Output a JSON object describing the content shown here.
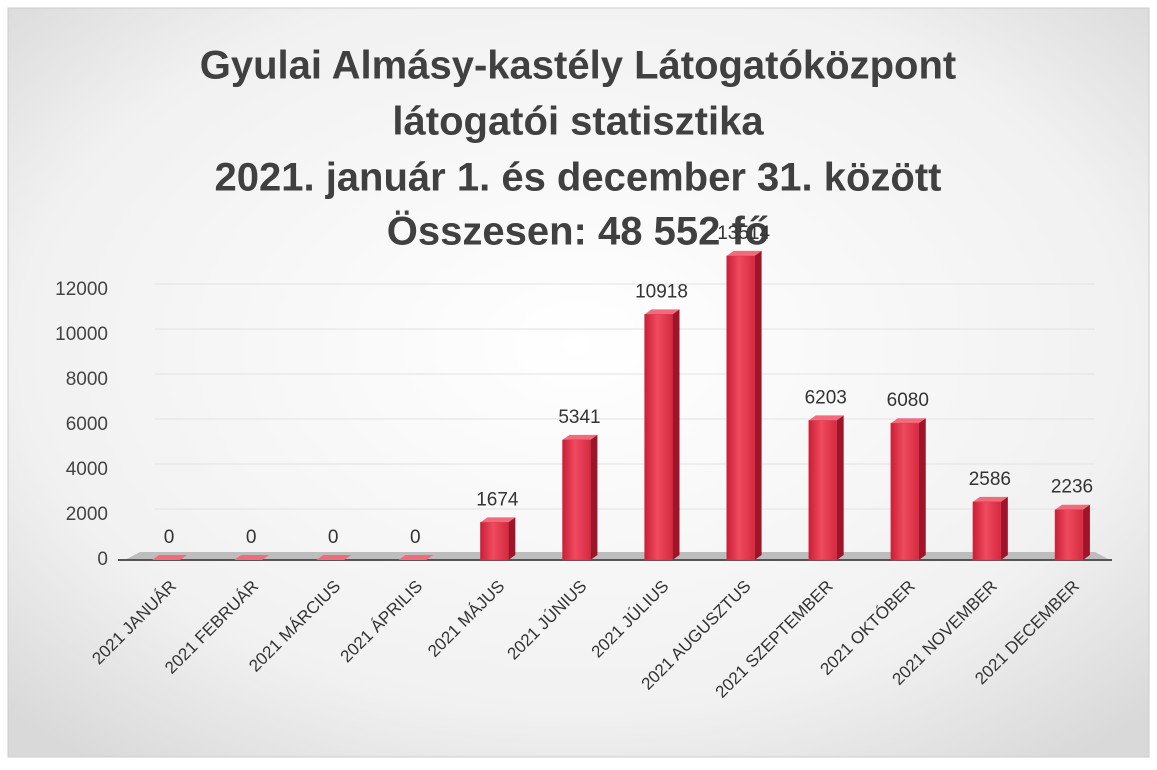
{
  "chart_data": {
    "type": "bar",
    "title": [
      "Gyulai Almásy-kastély Látogatóközpont",
      "látogatói statisztika",
      "2021. január 1. és december 31. között",
      "Összesen: 48 552 fő"
    ],
    "categories": [
      "2021 JANUÁR",
      "2021 FEBRUÁR",
      "2021 MÁRCIUS",
      "2021 ÁPRILIS",
      "2021 MÁJUS",
      "2021 JÚNIUS",
      "2021 JÚLIUS",
      "2021 AUGUSZTUS",
      "2021 SZEPTEMBER",
      "2021 OKTÓBER",
      "2021 NOVEMBER",
      "2021 DECEMBER"
    ],
    "values": [
      0,
      0,
      0,
      0,
      1674,
      5341,
      10918,
      13514,
      6203,
      6080,
      2586,
      2236
    ],
    "color": "#e0334a",
    "ylim": [
      0,
      14000
    ],
    "yticks": [
      0,
      2000,
      4000,
      6000,
      8000,
      10000,
      12000
    ],
    "grid": true
  }
}
